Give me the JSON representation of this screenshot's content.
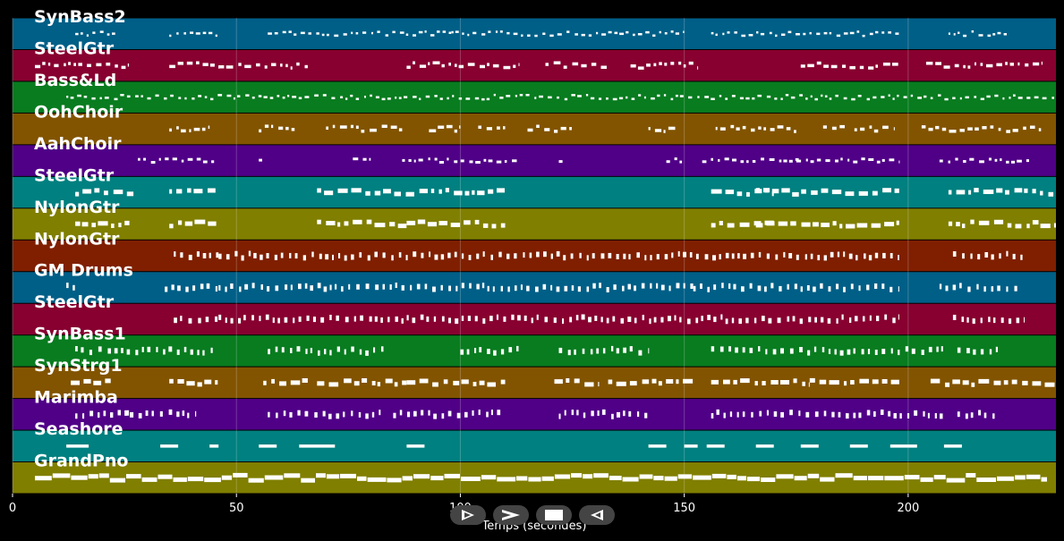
{
  "chart_data": {
    "type": "piano-roll",
    "title": "",
    "xlabel": "Temps (secondes)",
    "ylabel": "",
    "xlim": [
      0,
      233
    ],
    "xticks": [
      0,
      50,
      100,
      150,
      200
    ],
    "grid": true,
    "tracks": [
      {
        "name": "SynBass2",
        "color": "#005f87",
        "style": "dots",
        "segments": [
          [
            14,
            23
          ],
          [
            35,
            46
          ],
          [
            57,
            98
          ],
          [
            98,
            150
          ],
          [
            156,
            198
          ],
          [
            209,
            222
          ]
        ]
      },
      {
        "name": "SteelGtr",
        "color": "#870030",
        "style": "mixed",
        "segments": [
          [
            5,
            26
          ],
          [
            35,
            46
          ],
          [
            46,
            66
          ],
          [
            88,
            113
          ],
          [
            119,
            133
          ],
          [
            138,
            153
          ],
          [
            176,
            198
          ],
          [
            204,
            230
          ]
        ]
      },
      {
        "name": "Bass&Ld",
        "color": "#087c1f",
        "style": "dots",
        "segments": [
          [
            12,
            233
          ]
        ]
      },
      {
        "name": "OohChoir",
        "color": "#825400",
        "style": "mixed",
        "segments": [
          [
            35,
            44
          ],
          [
            55,
            63
          ],
          [
            70,
            87
          ],
          [
            93,
            100
          ],
          [
            104,
            110
          ],
          [
            115,
            125
          ],
          [
            142,
            148
          ],
          [
            157,
            175
          ],
          [
            181,
            186
          ],
          [
            188,
            197
          ],
          [
            203,
            230
          ]
        ]
      },
      {
        "name": "AahChoir",
        "color": "#500087",
        "style": "sparse",
        "segments": [
          [
            28,
            45
          ],
          [
            55,
            56
          ],
          [
            76,
            80
          ],
          [
            87,
            113
          ],
          [
            116,
            116
          ],
          [
            122,
            123
          ],
          [
            146,
            150
          ],
          [
            154,
            176
          ],
          [
            175,
            198
          ],
          [
            207,
            227
          ]
        ]
      },
      {
        "name": "SteelGtr",
        "color": "#008080",
        "style": "blocks",
        "segments": [
          [
            14,
            27
          ],
          [
            35,
            46
          ],
          [
            68,
            88
          ],
          [
            88,
            110
          ],
          [
            156,
            170
          ],
          [
            166,
            198
          ],
          [
            209,
            233
          ]
        ]
      },
      {
        "name": "NylonGtr",
        "color": "#807f00",
        "style": "blocks",
        "segments": [
          [
            14,
            27
          ],
          [
            35,
            46
          ],
          [
            68,
            88
          ],
          [
            88,
            110
          ],
          [
            156,
            170
          ],
          [
            166,
            198
          ],
          [
            209,
            233
          ]
        ]
      },
      {
        "name": "NylonGtr",
        "color": "#7f1f00",
        "style": "ticks",
        "segments": [
          [
            36,
            46
          ],
          [
            46,
            198
          ],
          [
            210,
            226
          ]
        ]
      },
      {
        "name": "GM Drums",
        "color": "#005f87",
        "style": "ticks",
        "segments": [
          [
            12,
            14
          ],
          [
            34,
            46
          ],
          [
            46,
            152
          ],
          [
            152,
            198
          ],
          [
            207,
            225
          ]
        ]
      },
      {
        "name": "SteelGtr",
        "color": "#870030",
        "style": "ticks",
        "segments": [
          [
            36,
            46
          ],
          [
            46,
            198
          ],
          [
            210,
            226
          ]
        ]
      },
      {
        "name": "SynBass1",
        "color": "#087c1f",
        "style": "ticks",
        "segments": [
          [
            14,
            45
          ],
          [
            57,
            83
          ],
          [
            100,
            113
          ],
          [
            122,
            142
          ],
          [
            156,
            208
          ],
          [
            211,
            220
          ]
        ]
      },
      {
        "name": "SynStrg1",
        "color": "#825400",
        "style": "blocks",
        "segments": [
          [
            13,
            22
          ],
          [
            35,
            46
          ],
          [
            56,
            66
          ],
          [
            68,
            88
          ],
          [
            88,
            110
          ],
          [
            121,
            131
          ],
          [
            133,
            152
          ],
          [
            156,
            178
          ],
          [
            178,
            198
          ],
          [
            205,
            233
          ]
        ]
      },
      {
        "name": "Marimba",
        "color": "#500087",
        "style": "ticks",
        "segments": [
          [
            14,
            26
          ],
          [
            25,
            41
          ],
          [
            57,
            83
          ],
          [
            85,
            109
          ],
          [
            122,
            142
          ],
          [
            156,
            208
          ],
          [
            211,
            220
          ]
        ]
      },
      {
        "name": "Seashore",
        "color": "#008080",
        "style": "bars",
        "segments": [
          [
            12,
            17
          ],
          [
            33,
            37
          ],
          [
            44,
            46
          ],
          [
            55,
            59
          ],
          [
            64,
            72
          ],
          [
            88,
            92
          ],
          [
            142,
            146
          ],
          [
            150,
            153
          ],
          [
            155,
            159
          ],
          [
            166,
            170
          ],
          [
            176,
            180
          ],
          [
            187,
            191
          ],
          [
            196,
            202
          ],
          [
            208,
            212
          ]
        ]
      },
      {
        "name": "GrandPno",
        "color": "#807f00",
        "style": "solid",
        "segments": [
          [
            5,
            231
          ]
        ]
      }
    ]
  },
  "controls": {
    "play_icon": "play-outline-icon",
    "forward_icon": "chevron-right-icon",
    "stop_icon": "stop-icon",
    "rewind_icon": "triangle-left-icon"
  }
}
